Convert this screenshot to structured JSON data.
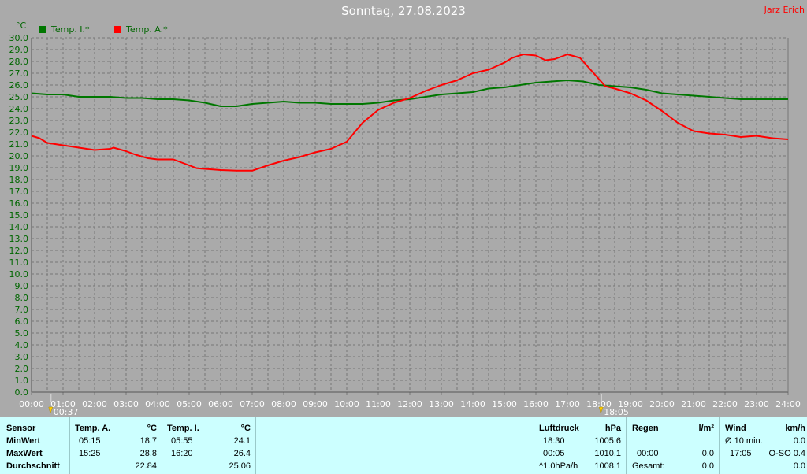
{
  "header": {
    "title": "Sonntag, 27.08.2023",
    "owner": "Jarz Erich"
  },
  "chart_data": {
    "type": "line",
    "ylabel_unit": "°C",
    "ylim": [
      0,
      30
    ],
    "xlim": [
      0,
      24
    ],
    "y_ticks": [
      "0.0",
      "1.0",
      "2.0",
      "3.0",
      "4.0",
      "5.0",
      "6.0",
      "7.0",
      "8.0",
      "9.0",
      "10.0",
      "11.0",
      "12.0",
      "13.0",
      "14.0",
      "15.0",
      "16.0",
      "17.0",
      "18.0",
      "19.0",
      "20.0",
      "21.0",
      "22.0",
      "23.0",
      "24.0",
      "25.0",
      "26.0",
      "27.0",
      "28.0",
      "29.0",
      "30.0"
    ],
    "x_ticks": [
      "00:00",
      "01:00",
      "02:00",
      "03:00",
      "04:00",
      "05:00",
      "06:00",
      "07:00",
      "08:00",
      "09:00",
      "10:00",
      "11:00",
      "12:00",
      "13:00",
      "14:00",
      "15:00",
      "16:00",
      "17:00",
      "18:00",
      "19:00",
      "20:00",
      "21:00",
      "22:00",
      "23:00",
      "24:00"
    ],
    "grid": true,
    "legend_position": "top-left",
    "markers": [
      {
        "label": "00:37",
        "hour": 0.62
      },
      {
        "label": "18:05",
        "hour": 18.08
      }
    ],
    "series": [
      {
        "name": "Temp. I.*",
        "color": "#007700",
        "x": [
          0,
          0.5,
          1,
          1.5,
          2,
          2.5,
          3,
          3.5,
          4,
          4.5,
          5,
          5.5,
          6,
          6.5,
          7,
          7.5,
          8,
          8.5,
          9,
          9.5,
          10,
          10.5,
          11,
          11.5,
          12,
          12.5,
          13,
          13.5,
          14,
          14.5,
          15,
          15.5,
          16,
          16.5,
          17,
          17.5,
          18,
          18.5,
          19,
          19.5,
          20,
          20.5,
          21,
          21.5,
          22,
          22.5,
          23,
          23.5,
          24
        ],
        "values": [
          25.3,
          25.2,
          25.2,
          25.0,
          25.0,
          25.0,
          24.9,
          24.9,
          24.8,
          24.8,
          24.7,
          24.5,
          24.2,
          24.2,
          24.4,
          24.5,
          24.6,
          24.5,
          24.5,
          24.4,
          24.4,
          24.4,
          24.5,
          24.7,
          24.8,
          25.0,
          25.2,
          25.3,
          25.4,
          25.7,
          25.8,
          26.0,
          26.2,
          26.3,
          26.4,
          26.3,
          26.0,
          25.9,
          25.8,
          25.6,
          25.3,
          25.2,
          25.1,
          25.0,
          24.9,
          24.8,
          24.8,
          24.8,
          24.8
        ]
      },
      {
        "name": "Temp. A.*",
        "color": "#ff0000",
        "x": [
          0,
          0.25,
          0.5,
          1,
          1.5,
          2,
          2.5,
          2.6,
          3,
          3.3,
          3.7,
          4,
          4.5,
          5,
          5.25,
          5.5,
          6,
          6.5,
          7,
          7.5,
          8,
          8.5,
          9,
          9.5,
          10,
          10.5,
          11,
          11.5,
          12,
          12.5,
          13,
          13.5,
          14,
          14.5,
          15,
          15.25,
          15.6,
          16,
          16.3,
          16.6,
          17,
          17.4,
          17.8,
          18.2,
          18.5,
          19,
          19.5,
          20,
          20.5,
          21,
          21.5,
          22,
          22.5,
          23,
          23.5,
          24
        ],
        "values": [
          21.7,
          21.5,
          21.1,
          20.9,
          20.7,
          20.5,
          20.6,
          20.7,
          20.4,
          20.1,
          19.8,
          19.7,
          19.7,
          19.2,
          18.95,
          18.9,
          18.8,
          18.75,
          18.75,
          19.2,
          19.6,
          19.9,
          20.3,
          20.6,
          21.2,
          22.8,
          23.9,
          24.5,
          24.9,
          25.5,
          26.0,
          26.4,
          27.0,
          27.3,
          27.9,
          28.3,
          28.6,
          28.5,
          28.1,
          28.2,
          28.6,
          28.3,
          27.1,
          25.9,
          25.7,
          25.3,
          24.7,
          23.8,
          22.8,
          22.1,
          21.9,
          21.8,
          21.6,
          21.7,
          21.5,
          21.4
        ]
      }
    ]
  },
  "summary": {
    "sensor_header": "Sensor",
    "row_labels": [
      "MinWert",
      "MaxWert",
      "Durchschnitt"
    ],
    "temp_a": {
      "title": "Temp. A.",
      "unit": "°C",
      "min_time": "05:15",
      "min": "18.7",
      "max_time": "15:25",
      "max": "28.8",
      "avg": "22.84"
    },
    "temp_i": {
      "title": "Temp. I.",
      "unit": "°C",
      "min_time": "05:55",
      "min": "24.1",
      "max_time": "16:20",
      "max": "26.4",
      "avg": "25.06"
    },
    "pressure": {
      "title": "Luftdruck",
      "unit": "hPa",
      "min_time": "18:30",
      "min": "1005.6",
      "max_time": "00:05",
      "max": "1010.1",
      "trend_label": "^1.0hPa/h",
      "trend_value": "1008.1"
    },
    "rain": {
      "title": "Regen",
      "unit": "l/m²",
      "r1_label": "",
      "r1_value": "",
      "r2_label": "00:00",
      "r2_value": "0.0",
      "total_label": "Gesamt:",
      "total_value": "0.0"
    },
    "wind": {
      "title": "Wind",
      "unit": "km/h",
      "avg_label": "Ø 10 min.",
      "avg_value": "0.0",
      "max_time": "17:05",
      "max_value": "O-SO 0.4",
      "last_value": "0.0"
    }
  }
}
